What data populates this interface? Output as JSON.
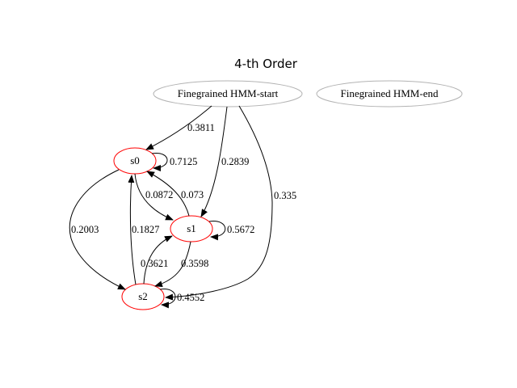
{
  "title": "4-th Order",
  "colors": {
    "state_border": "#ff0000",
    "terminal_border": "#b3b3b3",
    "edge": "#000000"
  },
  "nodes": {
    "start": "Finegrained HMM-start",
    "end": "Finegrained HMM-end",
    "s0": "s0",
    "s1": "s1",
    "s2": "s2"
  },
  "edges": [
    {
      "from": "Finegrained HMM-start",
      "to": "s0",
      "label": "0.3811"
    },
    {
      "from": "Finegrained HMM-start",
      "to": "s1",
      "label": "0.2839"
    },
    {
      "from": "Finegrained HMM-start",
      "to": "s2",
      "label": "0.335"
    },
    {
      "from": "s0",
      "to": "s0",
      "label": "0.7125"
    },
    {
      "from": "s0",
      "to": "s1",
      "label": "0.0872"
    },
    {
      "from": "s1",
      "to": "s0",
      "label": "0.073"
    },
    {
      "from": "s0",
      "to": "s2",
      "label": "0.2003"
    },
    {
      "from": "s2",
      "to": "s0",
      "label": "0.1827"
    },
    {
      "from": "s1",
      "to": "s1",
      "label": "0.5672"
    },
    {
      "from": "s2",
      "to": "s1",
      "label": "0.3621"
    },
    {
      "from": "s1",
      "to": "s2",
      "label": "0.3598"
    },
    {
      "from": "s2",
      "to": "s2",
      "label": "0.4552"
    }
  ]
}
